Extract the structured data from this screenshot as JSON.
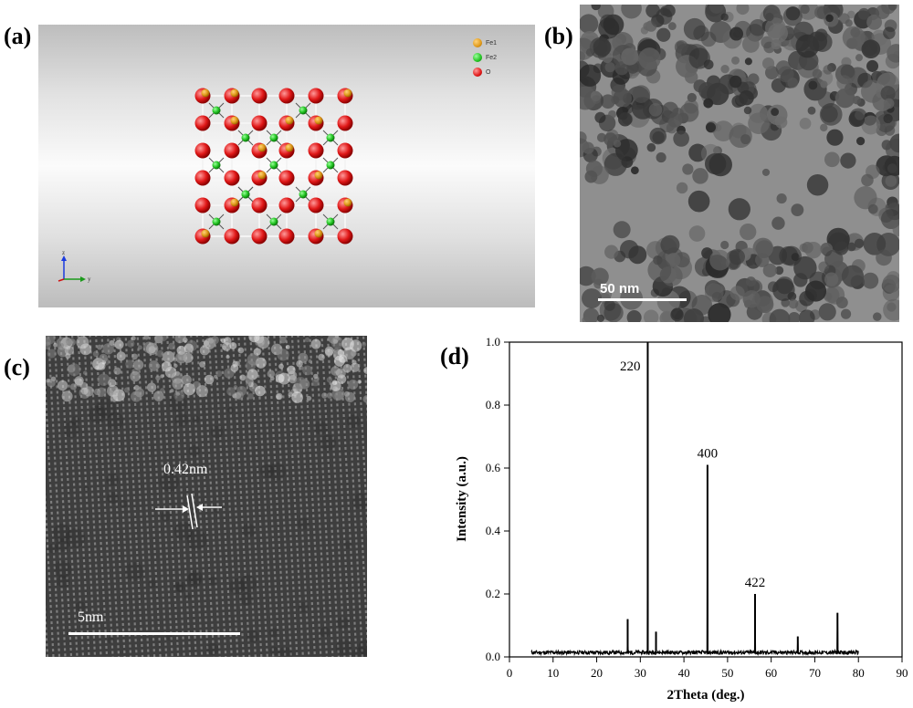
{
  "panel_labels": {
    "a": "(a)",
    "b": "(b)",
    "c": "(c)",
    "d": "(d)"
  },
  "panel_a": {
    "legend": [
      {
        "label": "Fe1",
        "color": "#e09a1a"
      },
      {
        "label": "Fe2",
        "color": "#22c322"
      },
      {
        "label": "O",
        "color": "#e01818"
      }
    ],
    "axes": {
      "z": "z",
      "y": "y"
    }
  },
  "panel_b": {
    "scale_label": "50 nm"
  },
  "panel_c": {
    "lattice_label": "0.42nm",
    "scale_label": "5nm"
  },
  "chart_data": {
    "type": "line",
    "xlabel": "2Theta (deg.)",
    "ylabel": "Intensity (a.u.)",
    "xlim": [
      0,
      90
    ],
    "ylim": [
      0,
      1.0
    ],
    "xticks": [
      0,
      10,
      20,
      30,
      40,
      50,
      60,
      70,
      80,
      90
    ],
    "yticks": [
      0.0,
      0.2,
      0.4,
      0.6,
      0.8,
      1.0
    ],
    "ytick_labels": [
      "0.0",
      "0.2",
      "0.4",
      "0.6",
      "0.8",
      "1.0"
    ],
    "peaks": [
      {
        "x": 27.1,
        "y": 0.12
      },
      {
        "x": 31.7,
        "y": 1.0,
        "label": "220"
      },
      {
        "x": 33.6,
        "y": 0.08
      },
      {
        "x": 45.4,
        "y": 0.61,
        "label": "400"
      },
      {
        "x": 56.3,
        "y": 0.2,
        "label": "422"
      },
      {
        "x": 66.1,
        "y": 0.065
      },
      {
        "x": 75.2,
        "y": 0.14
      }
    ],
    "baseline_range": [
      5,
      80
    ],
    "grid": false
  }
}
